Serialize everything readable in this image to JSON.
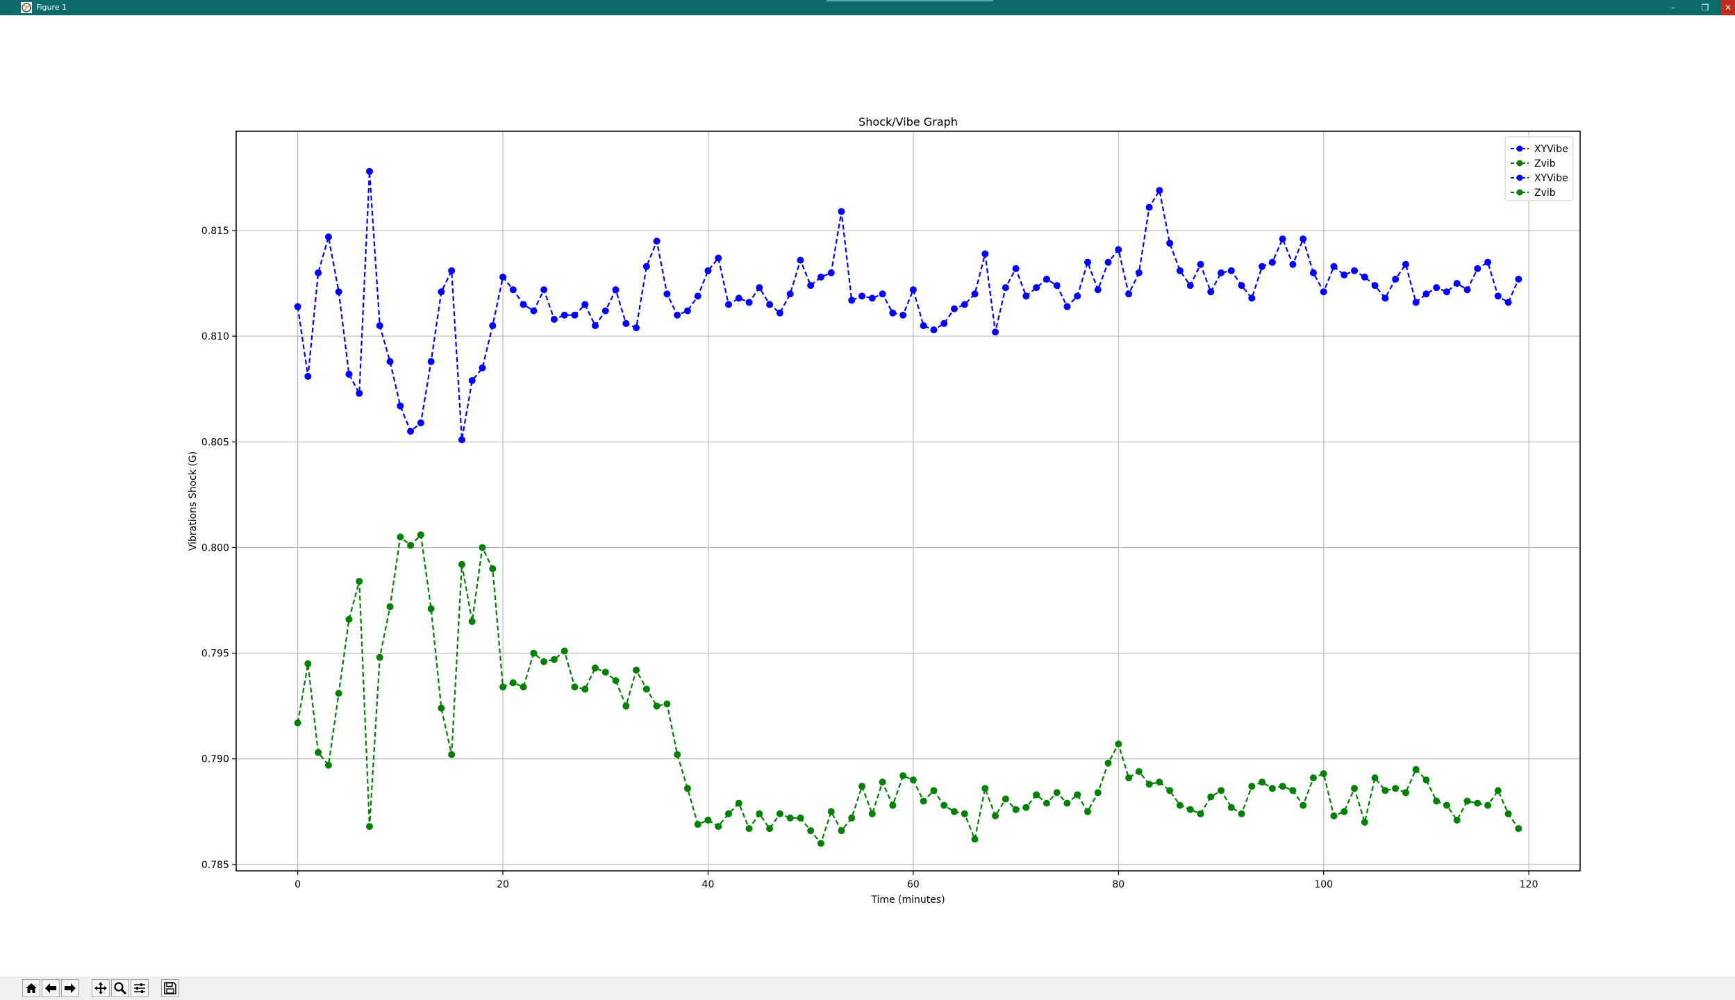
{
  "window": {
    "title": "Figure 1",
    "minimize_label": "–",
    "restore_label": "❐",
    "close_label": "✕"
  },
  "toolbar": {
    "buttons": [
      "home-icon",
      "back-arrow-icon",
      "forward-arrow-icon",
      "pan-icon",
      "zoom-icon",
      "configure-subplots-icon",
      "save-icon"
    ]
  },
  "chart_data": {
    "type": "line",
    "title": "Shock/Vibe Graph",
    "xlabel": "Time (minutes)",
    "ylabel": "Vibrations Shock (G)",
    "xlim": [
      -6,
      125
    ],
    "ylim": [
      0.7847,
      0.8197
    ],
    "xticks": [
      0,
      20,
      40,
      60,
      80,
      100,
      120
    ],
    "xtick_labels": [
      "0",
      "20",
      "40",
      "60",
      "80",
      "100",
      "120"
    ],
    "yticks": [
      0.785,
      0.79,
      0.795,
      0.8,
      0.805,
      0.81,
      0.815
    ],
    "ytick_labels": [
      "0.785",
      "0.790",
      "0.795",
      "0.800",
      "0.805",
      "0.810",
      "0.815"
    ],
    "grid": true,
    "legend_position": "upper right",
    "legend": [
      {
        "label": "XYVibe",
        "color": "#0000ff"
      },
      {
        "label": "Zvib",
        "color": "#008000"
      },
      {
        "label": "XYVibe",
        "color": "#0000ff"
      },
      {
        "label": "Zvib",
        "color": "#008000"
      }
    ],
    "series": [
      {
        "name": "XYVibe",
        "color": "#0000ff",
        "linestyle": "dashed",
        "marker": "o",
        "y": [
          0.8114,
          0.8081,
          0.813,
          0.8147,
          0.8121,
          0.8082,
          0.8073,
          0.8178,
          0.8105,
          0.8088,
          0.8067,
          0.8055,
          0.8059,
          0.8088,
          0.8121,
          0.8131,
          0.8051,
          0.8079,
          0.8085,
          0.8105,
          0.8128,
          0.8122,
          0.8115,
          0.8112,
          0.8122,
          0.8108,
          0.811,
          0.811,
          0.8115,
          0.8105,
          0.8112,
          0.8122,
          0.8106,
          0.8104,
          0.8133,
          0.8145,
          0.812,
          0.811,
          0.8112,
          0.8119,
          0.8131,
          0.8137,
          0.8115,
          0.8118,
          0.8116,
          0.8123,
          0.8115,
          0.8111,
          0.812,
          0.8136,
          0.8124,
          0.8128,
          0.813,
          0.8159,
          0.8117,
          0.8119,
          0.8118,
          0.812,
          0.8111,
          0.811,
          0.8122,
          0.8105,
          0.8103,
          0.8106,
          0.8113,
          0.8115,
          0.812,
          0.8139,
          0.8102,
          0.8123,
          0.8132,
          0.8119,
          0.8123,
          0.8127,
          0.8124,
          0.8114,
          0.8119,
          0.8135,
          0.8122,
          0.8135,
          0.8141,
          0.812,
          0.813,
          0.8161,
          0.8169,
          0.8144,
          0.8131,
          0.8124,
          0.8134,
          0.8121,
          0.813,
          0.8131,
          0.8124,
          0.8118,
          0.8133,
          0.8135,
          0.8146,
          0.8134,
          0.8146,
          0.813,
          0.8121,
          0.8133,
          0.8129,
          0.8131,
          0.8128,
          0.8124,
          0.8118,
          0.8127,
          0.8134,
          0.8116,
          0.812,
          0.8123,
          0.8121,
          0.8125,
          0.8122,
          0.8132,
          0.8135,
          0.8119,
          0.8116,
          0.8127
        ]
      },
      {
        "name": "Zvib",
        "color": "#008000",
        "linestyle": "dashed",
        "marker": "o",
        "y": [
          0.7917,
          0.7945,
          0.7903,
          0.7897,
          0.7931,
          0.7966,
          0.7984,
          0.7868,
          0.7948,
          0.7972,
          0.8005,
          0.8001,
          0.8006,
          0.7971,
          0.7924,
          0.7902,
          0.7992,
          0.7965,
          0.8,
          0.799,
          0.7934,
          0.7936,
          0.7934,
          0.795,
          0.7946,
          0.7947,
          0.7951,
          0.7934,
          0.7933,
          0.7943,
          0.7941,
          0.7937,
          0.7925,
          0.7942,
          0.7933,
          0.7925,
          0.7926,
          0.7902,
          0.7886,
          0.7869,
          0.7871,
          0.7868,
          0.7874,
          0.7879,
          0.7867,
          0.7874,
          0.7867,
          0.7874,
          0.7872,
          0.7872,
          0.7866,
          0.786,
          0.7875,
          0.7866,
          0.7872,
          0.7887,
          0.7874,
          0.7889,
          0.7878,
          0.7892,
          0.789,
          0.788,
          0.7885,
          0.7878,
          0.7875,
          0.7874,
          0.7862,
          0.7886,
          0.7873,
          0.7881,
          0.7876,
          0.7877,
          0.7883,
          0.7879,
          0.7884,
          0.7879,
          0.7883,
          0.7875,
          0.7884,
          0.7898,
          0.7907,
          0.7891,
          0.7894,
          0.7888,
          0.7889,
          0.7885,
          0.7878,
          0.7876,
          0.7874,
          0.7882,
          0.7885,
          0.7877,
          0.7874,
          0.7887,
          0.7889,
          0.7886,
          0.7887,
          0.7885,
          0.7878,
          0.7891,
          0.7893,
          0.7873,
          0.7875,
          0.7886,
          0.787,
          0.7891,
          0.7885,
          0.7886,
          0.7884,
          0.7895,
          0.789,
          0.788,
          0.7878,
          0.7871,
          0.788,
          0.7879,
          0.7878,
          0.7885,
          0.7874,
          0.7867
        ]
      }
    ]
  }
}
